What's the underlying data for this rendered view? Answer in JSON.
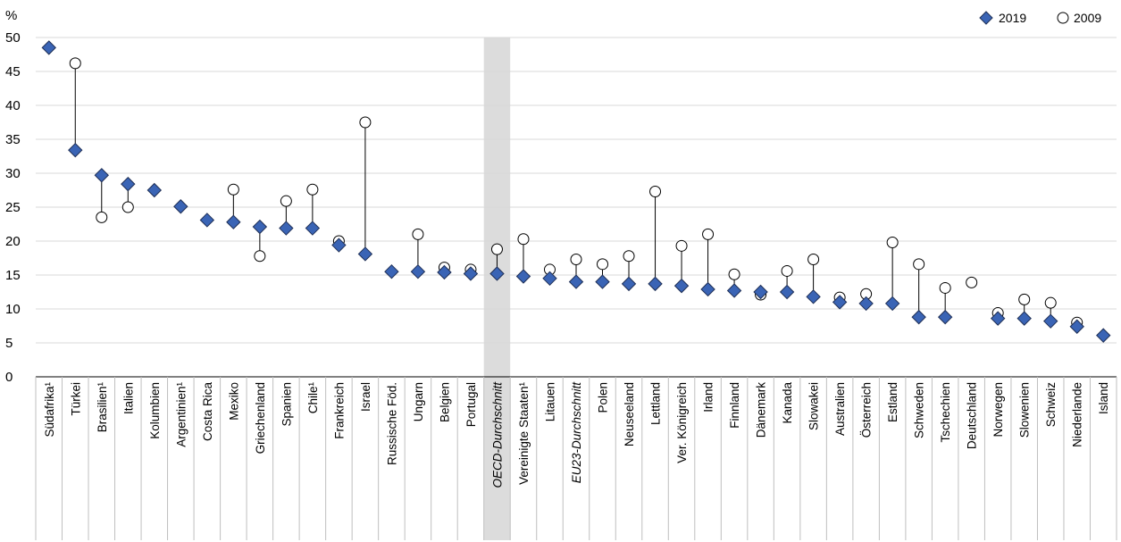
{
  "chart_data": {
    "type": "scatter",
    "ylabel": "%",
    "ylim": [
      0,
      50
    ],
    "yticks": [
      0,
      5,
      10,
      15,
      20,
      25,
      30,
      35,
      40,
      45,
      50
    ],
    "grid": true,
    "legend_position": "top-right",
    "categories": [
      "Südafrika¹",
      "Türkei",
      "Brasilien¹",
      "Italien",
      "Kolumbien",
      "Argentinien¹",
      "Costa Rica",
      "Mexiko",
      "Griechenland",
      "Spanien",
      "Chile¹",
      "Frankreich",
      "Israel",
      "Russische Föd.",
      "Ungarn",
      "Belgien",
      "Portugal",
      "OECD-Durchschnitt",
      "Vereinigte Staaten¹",
      "Litauen",
      "EU23-Durchschnitt",
      "Polen",
      "Neuseeland",
      "Lettland",
      "Ver. Königreich",
      "Irland",
      "Finnland",
      "Dänemark",
      "Kanada",
      "Slowakei",
      "Australien",
      "Österreich",
      "Estland",
      "Schweden",
      "Tschechien",
      "Deutschland",
      "Norwegen",
      "Slowenien",
      "Schweiz",
      "Niederlande",
      "Island"
    ],
    "highlighted_categories": [
      "OECD-Durchschnitt"
    ],
    "italic_categories": [
      "OECD-Durchschnitt",
      "EU23-Durchschnitt"
    ],
    "series": [
      {
        "name": "2019",
        "marker": "diamond",
        "color": "#3a64b5",
        "values": [
          48.5,
          33.4,
          29.7,
          28.4,
          27.5,
          25.1,
          23.1,
          22.8,
          22.1,
          21.9,
          21.9,
          19.4,
          18.1,
          15.5,
          15.5,
          15.4,
          15.2,
          15.2,
          14.8,
          14.5,
          14.0,
          14.0,
          13.7,
          13.7,
          13.4,
          12.9,
          12.7,
          12.5,
          12.5,
          11.8,
          11.0,
          10.8,
          10.8,
          8.8,
          8.8,
          null,
          8.6,
          8.6,
          8.2,
          7.4,
          6.1
        ]
      },
      {
        "name": "2009",
        "marker": "circle",
        "color": "#ffffff",
        "values": [
          null,
          46.2,
          23.5,
          25.0,
          null,
          null,
          null,
          27.6,
          17.8,
          25.9,
          27.6,
          20.0,
          37.5,
          null,
          21.0,
          16.1,
          15.8,
          18.8,
          20.3,
          15.8,
          17.3,
          16.6,
          17.8,
          27.3,
          19.3,
          21.0,
          15.1,
          12.1,
          15.6,
          17.3,
          11.7,
          12.2,
          19.8,
          16.6,
          13.1,
          13.9,
          9.4,
          11.4,
          10.9,
          8.0,
          null
        ]
      }
    ]
  }
}
